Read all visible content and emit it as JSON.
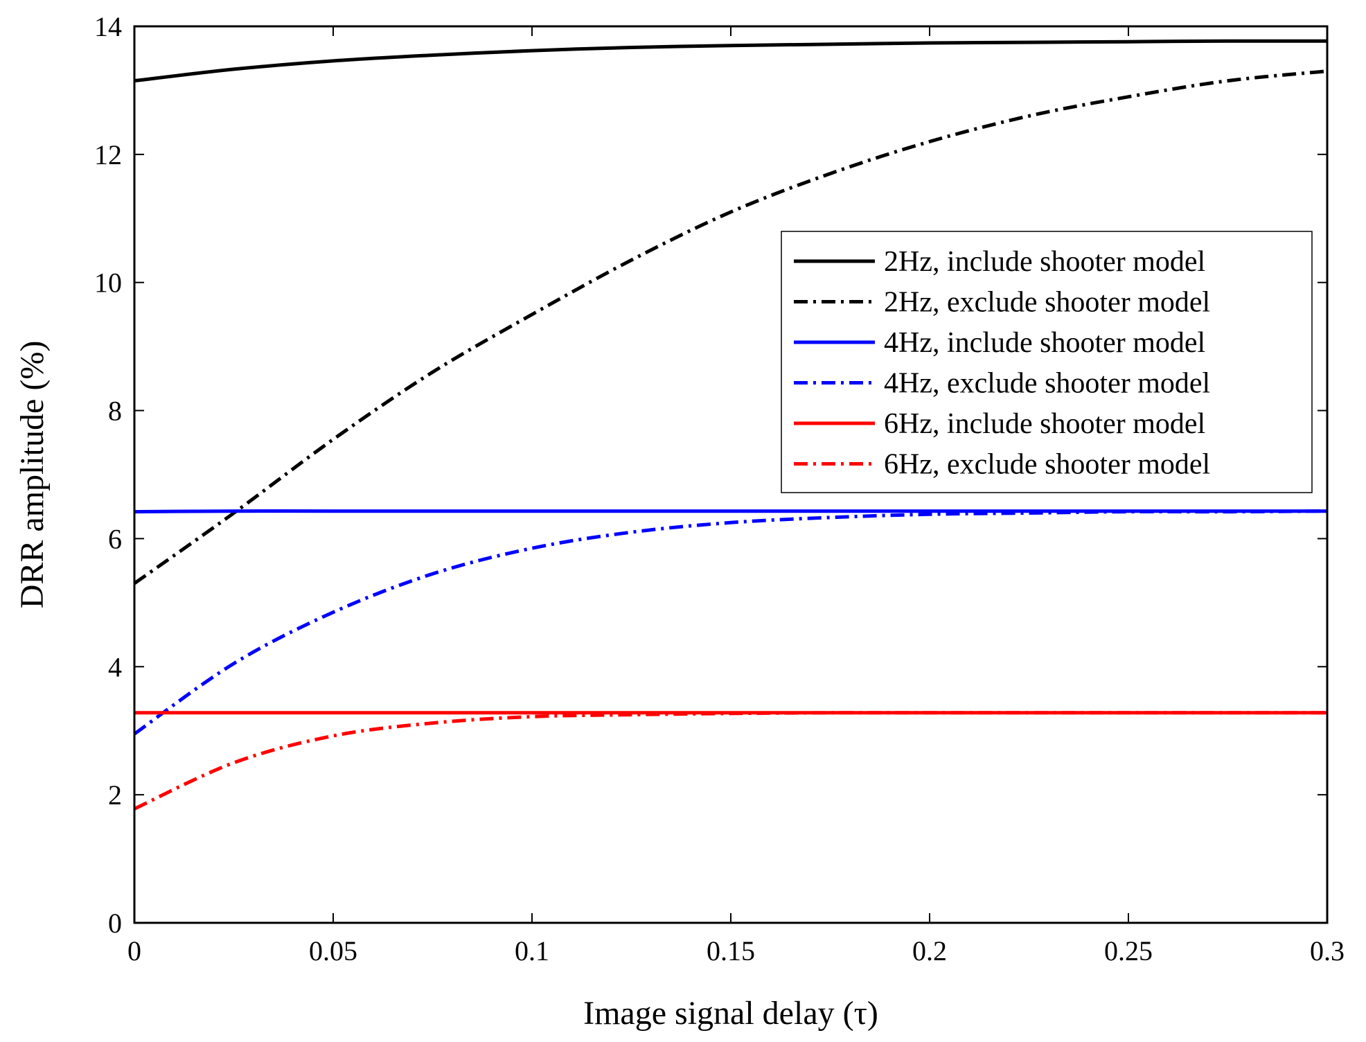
{
  "chart_data": {
    "type": "line",
    "title": "",
    "xlabel": "Image signal delay (τ)",
    "ylabel": "DRR amplitude (%)",
    "xlim": [
      0,
      0.3
    ],
    "ylim": [
      0,
      14
    ],
    "xticks": [
      0,
      0.05,
      0.1,
      0.15,
      0.2,
      0.25,
      0.3
    ],
    "xtick_labels": [
      "0",
      "0.05",
      "0.1",
      "0.15",
      "0.2",
      "0.25",
      "0.3"
    ],
    "yticks": [
      0,
      2,
      4,
      6,
      8,
      10,
      12,
      14
    ],
    "ytick_labels": [
      "0",
      "2",
      "4",
      "6",
      "8",
      "10",
      "12",
      "14"
    ],
    "grid": false,
    "legend_position": "right-upper",
    "x": [
      0,
      0.025,
      0.05,
      0.075,
      0.1,
      0.125,
      0.15,
      0.175,
      0.2,
      0.225,
      0.25,
      0.275,
      0.3
    ],
    "series": [
      {
        "name": "2Hz, include shooter model",
        "color": "#000000",
        "style": "solid",
        "values": [
          13.15,
          13.33,
          13.46,
          13.55,
          13.62,
          13.67,
          13.7,
          13.72,
          13.74,
          13.75,
          13.76,
          13.77,
          13.77
        ]
      },
      {
        "name": "2Hz, exclude shooter model",
        "color": "#000000",
        "style": "dashdot",
        "values": [
          5.3,
          6.4,
          7.55,
          8.6,
          9.5,
          10.35,
          11.1,
          11.7,
          12.2,
          12.6,
          12.9,
          13.15,
          13.3
        ]
      },
      {
        "name": "4Hz, include shooter model",
        "color": "#0000ff",
        "style": "solid",
        "values": [
          6.42,
          6.43,
          6.43,
          6.43,
          6.43,
          6.43,
          6.43,
          6.43,
          6.43,
          6.43,
          6.43,
          6.43,
          6.43
        ]
      },
      {
        "name": "4Hz, exclude shooter model",
        "color": "#0000ff",
        "style": "dashdot",
        "values": [
          2.95,
          4.05,
          4.85,
          5.45,
          5.85,
          6.1,
          6.25,
          6.33,
          6.38,
          6.4,
          6.42,
          6.42,
          6.43
        ]
      },
      {
        "name": "6Hz, include shooter model",
        "color": "#ff0000",
        "style": "solid",
        "values": [
          3.28,
          3.28,
          3.28,
          3.28,
          3.28,
          3.28,
          3.28,
          3.28,
          3.28,
          3.28,
          3.28,
          3.28,
          3.28
        ]
      },
      {
        "name": "6Hz, exclude shooter model",
        "color": "#ff0000",
        "style": "dashdot",
        "values": [
          1.78,
          2.5,
          2.92,
          3.12,
          3.22,
          3.25,
          3.27,
          3.28,
          3.28,
          3.28,
          3.28,
          3.28,
          3.28
        ]
      }
    ]
  }
}
